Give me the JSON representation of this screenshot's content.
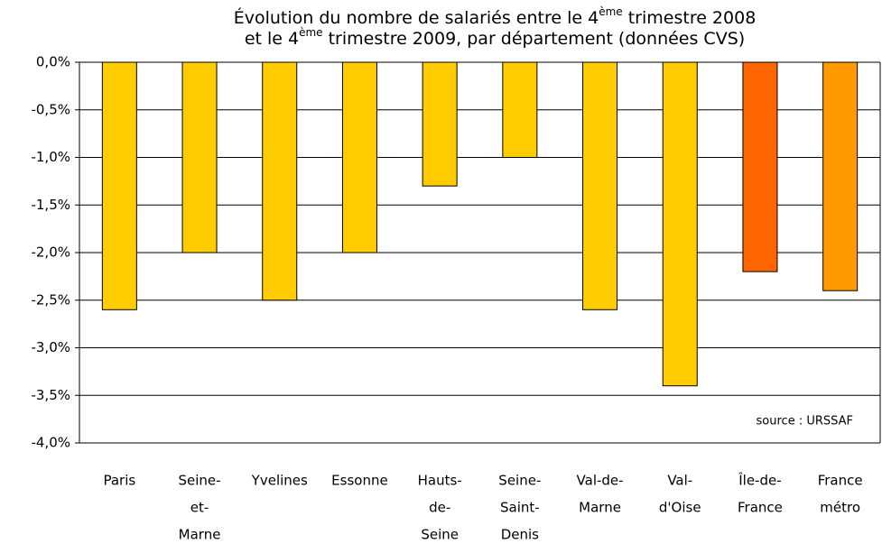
{
  "chart_data": {
    "type": "bar",
    "title": [
      [
        "Évolution du nombre de salariés entre le 4",
        "ème",
        " trimestre 2008"
      ],
      [
        "et le 4",
        "ème",
        " trimestre 2009, par département (données CVS)"
      ]
    ],
    "categories": [
      [
        "Paris"
      ],
      [
        "Seine-",
        "et-",
        "Marne"
      ],
      [
        "Yvelines"
      ],
      [
        "Essonne"
      ],
      [
        "Hauts-",
        "de-",
        "Seine"
      ],
      [
        "Seine-",
        "Saint-",
        "Denis"
      ],
      [
        "Val-de-",
        "Marne"
      ],
      [
        "Val-",
        "d'Oise"
      ],
      [
        "Île-de-",
        "France"
      ],
      [
        "France",
        "métro"
      ]
    ],
    "values": [
      -2.6,
      -2.0,
      -2.5,
      -2.0,
      -1.3,
      -1.0,
      -2.6,
      -3.4,
      -2.2,
      -2.4
    ],
    "colors": [
      "#ffcc00",
      "#ffcc00",
      "#ffcc00",
      "#ffcc00",
      "#ffcc00",
      "#ffcc00",
      "#ffcc00",
      "#ffcc00",
      "#ff6600",
      "#ff9900"
    ],
    "ylim": [
      -4,
      0
    ],
    "yticks": [
      {
        "value": 0,
        "label": "0,0%"
      },
      {
        "value": -0.5,
        "label": "-0,5%"
      },
      {
        "value": -1,
        "label": "-1,0%"
      },
      {
        "value": -1.5,
        "label": "-1,5%"
      },
      {
        "value": -2,
        "label": "-2,0%"
      },
      {
        "value": -2.5,
        "label": "-2,5%"
      },
      {
        "value": -3,
        "label": "-3,0%"
      },
      {
        "value": -3.5,
        "label": "-3,5%"
      },
      {
        "value": -4,
        "label": "-4,0%"
      }
    ],
    "grid": true,
    "annotation": "source : URSSAF"
  }
}
